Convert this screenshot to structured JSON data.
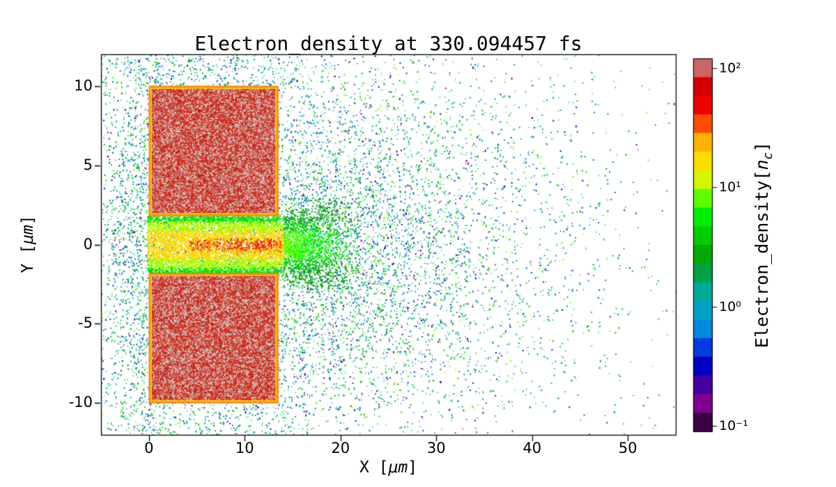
{
  "figure": {
    "background": "#ffffff"
  },
  "chart_data": {
    "type": "heatmap",
    "title": "Electron_density at 330.094457 fs",
    "xlabel": "X [μm]",
    "ylabel": "Y [μm]",
    "xlim": [
      -5,
      55
    ],
    "ylim": [
      -12,
      12
    ],
    "xticks": [
      0,
      10,
      20,
      30,
      40,
      50
    ],
    "yticks": [
      -10,
      -5,
      0,
      5,
      10
    ],
    "grid": false,
    "legend": "none",
    "colormap": "nipy_spectral (black→purple→blue→cyan→green→yellow→orange→red→grey)",
    "colorbar": {
      "label": "Electron_density[n_c]",
      "scale": "log",
      "tick_values": [
        0.1,
        1,
        10,
        100
      ],
      "tick_labels": [
        "10⁻¹",
        "10⁰",
        "10¹",
        "10²"
      ],
      "vmin": 0.09,
      "vmax": 120
    },
    "features": {
      "target_blocks": [
        {
          "x": [
            0,
            13.5
          ],
          "y": [
            1.8,
            10
          ],
          "density_nc": 100,
          "description": "overdense plasma slab: red fill with light grey overdense speckle, yellow-orange rim"
        },
        {
          "x": [
            0,
            13.5
          ],
          "y": [
            -10,
            -1.8
          ],
          "density_nc": 100,
          "description": "overdense plasma slab: red fill with light grey overdense speckle, yellow-orange rim"
        }
      ],
      "channel": {
        "x": [
          0,
          21
        ],
        "y": [
          -1.8,
          1.8
        ],
        "density_nc": [
          3,
          60
        ],
        "description": "laser channel between slabs: green edges, yellow mid, orange/red hot core near y=0 for x≈5–13, plume fading to x≈21"
      },
      "ambient_plasma": {
        "x": [
          -5,
          55
        ],
        "y": [
          -12,
          12
        ],
        "density_nc": [
          0.1,
          3
        ],
        "description": "scattered blow-off electrons: blue/teal/green/purple speckle, densest for x≈10–35 around y=0, sparse at far right and corners"
      }
    }
  }
}
